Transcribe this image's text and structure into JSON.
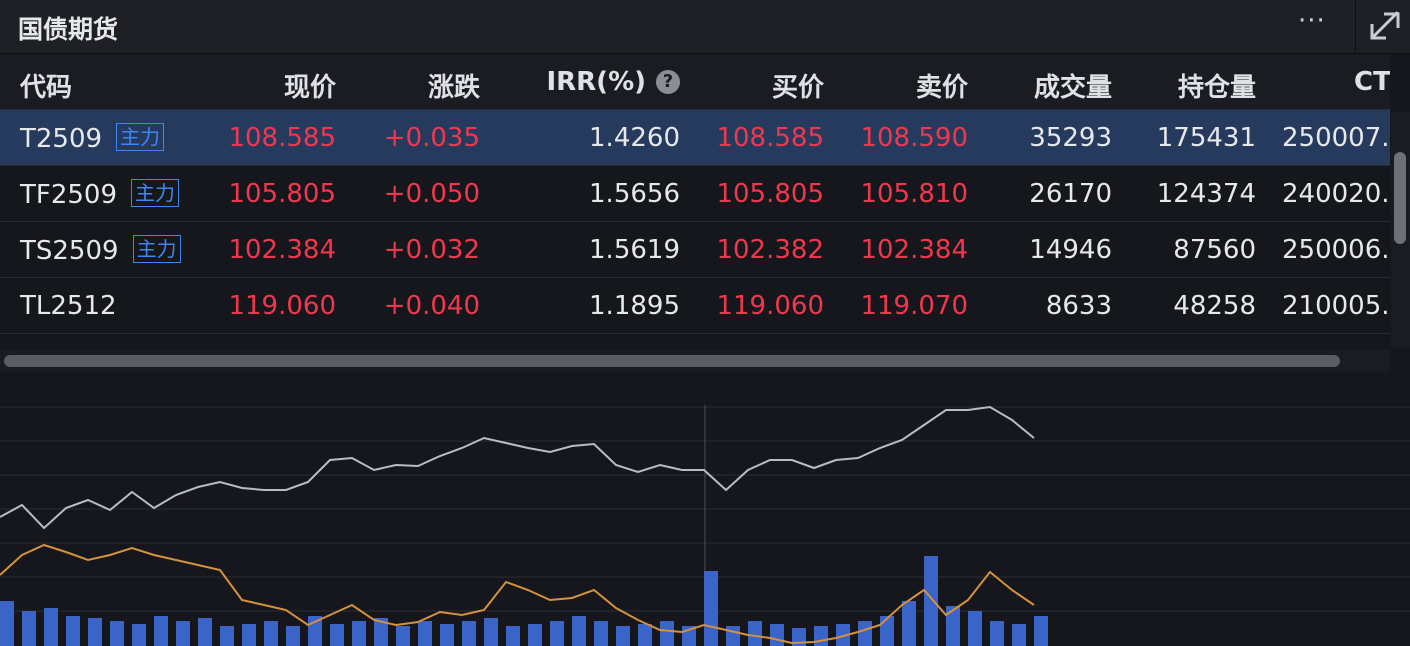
{
  "header": {
    "title": "国债期货",
    "menu": "···"
  },
  "table": {
    "columns": [
      "代码",
      "现价",
      "涨跌",
      "IRR(%)",
      "买价",
      "卖价",
      "成交量",
      "持仓量",
      "CT"
    ],
    "help_icon": "?",
    "rows": [
      {
        "code": "T2509",
        "badge": "主力",
        "cells": [
          "108.585",
          "+0.035",
          "1.4260",
          "108.585",
          "108.590",
          "35293",
          "175431",
          "250007."
        ]
      },
      {
        "code": "TF2509",
        "badge": "主力",
        "cells": [
          "105.805",
          "+0.050",
          "1.5656",
          "105.805",
          "105.810",
          "26170",
          "124374",
          "240020."
        ]
      },
      {
        "code": "TS2509",
        "badge": "主力",
        "cells": [
          "102.384",
          "+0.032",
          "1.5619",
          "102.382",
          "102.384",
          "14946",
          "87560",
          "250006."
        ]
      },
      {
        "code": "TL2512",
        "cells": [
          "119.060",
          "+0.040",
          "1.1895",
          "119.060",
          "119.070",
          "8633",
          "48258",
          "210005."
        ]
      }
    ]
  },
  "intraday_chart": {
    "ylim": [
      0,
      268
    ],
    "price": {
      "color": "#b8bcc6",
      "values": [
        129,
        141,
        118,
        138,
        146,
        136,
        154,
        138,
        151,
        159,
        164,
        158,
        156,
        156,
        164,
        186,
        188,
        176,
        181,
        180,
        190,
        198,
        208,
        203,
        198,
        194,
        200,
        202,
        181,
        174,
        181,
        176,
        176,
        156,
        176,
        186,
        186,
        178,
        186,
        188,
        198,
        206,
        221,
        236,
        236,
        239,
        226,
        208
      ]
    },
    "average": {
      "color": "#d4913e",
      "values": [
        71,
        91,
        101,
        94,
        86,
        91,
        98,
        91,
        86,
        81,
        76,
        46,
        41,
        36,
        21,
        31,
        41,
        26,
        21,
        24,
        34,
        31,
        36,
        64,
        56,
        46,
        48,
        56,
        38,
        26,
        16,
        14,
        21,
        16,
        11,
        8,
        3,
        4,
        8,
        14,
        21,
        41,
        56,
        31,
        46,
        74,
        56,
        41
      ]
    },
    "volume": {
      "color": "#3a64c8",
      "values": [
        45,
        35,
        38,
        30,
        28,
        25,
        22,
        30,
        25,
        28,
        20,
        22,
        25,
        20,
        30,
        22,
        25,
        28,
        20,
        25,
        22,
        25,
        28,
        20,
        22,
        25,
        30,
        25,
        20,
        22,
        25,
        20,
        75,
        20,
        25,
        22,
        18,
        20,
        22,
        25,
        30,
        45,
        90,
        40,
        35,
        25,
        22,
        30
      ]
    }
  }
}
